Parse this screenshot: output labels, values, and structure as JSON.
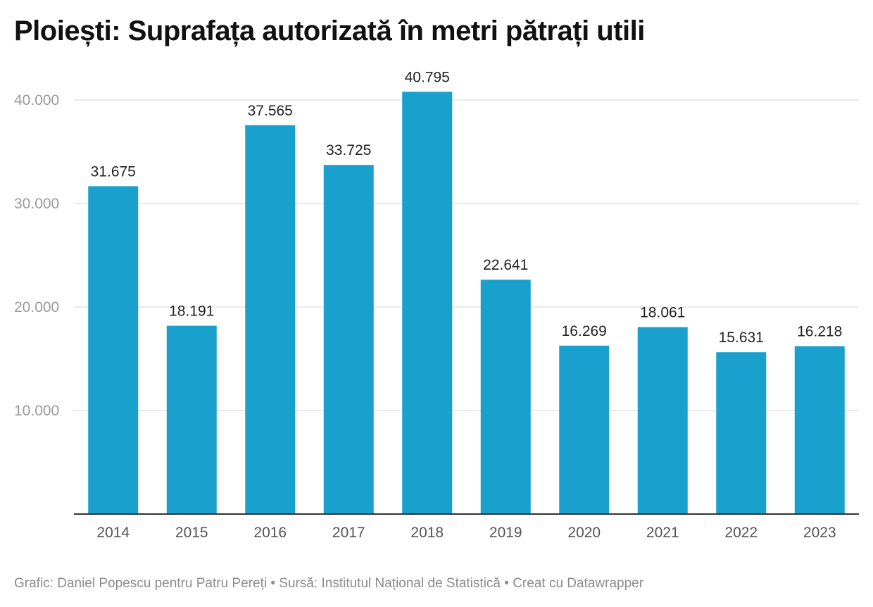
{
  "chart_data": {
    "type": "bar",
    "title": "Ploiești: Suprafața autorizată în metri pătrați utili",
    "categories": [
      "2014",
      "2015",
      "2016",
      "2017",
      "2018",
      "2019",
      "2020",
      "2021",
      "2022",
      "2023"
    ],
    "values": [
      31675,
      18191,
      37565,
      33725,
      40795,
      22641,
      16269,
      18061,
      15631,
      16218
    ],
    "value_labels": [
      "31.675",
      "18.191",
      "37.565",
      "33.725",
      "40.795",
      "22.641",
      "16.269",
      "18.061",
      "15.631",
      "16.218"
    ],
    "ylim": [
      0,
      40000
    ],
    "yticks": [
      10000,
      20000,
      30000,
      40000
    ],
    "ytick_labels": [
      "10.000",
      "20.000",
      "30.000",
      "40.000"
    ],
    "grid": true,
    "bar_color": "#1aa0cc"
  },
  "footer": "Grafic: Daniel Popescu pentru Patru Pereți • Sursă: Institutul Național de Statistică • Creat cu Datawrapper"
}
